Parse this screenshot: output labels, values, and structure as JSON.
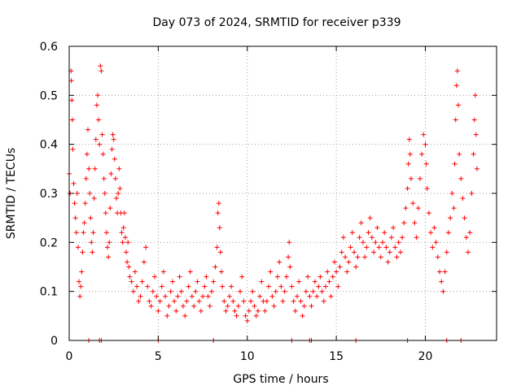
{
  "chart_data": {
    "type": "scatter",
    "title": "Day 073 of 2024, SRMTID for receiver p339",
    "xlabel": "GPS time / hours",
    "ylabel": "SRMTID / TECUs",
    "xlim": [
      0,
      24
    ],
    "ylim": [
      0,
      0.6
    ],
    "xticks": [
      0,
      5,
      10,
      15,
      20
    ],
    "xtick_labels": [
      "0",
      "5",
      "10",
      "15",
      "20"
    ],
    "yticks": [
      0,
      0.1,
      0.2,
      0.3,
      0.4,
      0.5,
      0.6
    ],
    "ytick_labels": [
      "0",
      "0.1",
      "0.2",
      "0.3",
      "0.4",
      "0.5",
      "0.6"
    ],
    "grid": true,
    "marker": "+",
    "color": "#ff0000",
    "series": [
      {
        "name": "SRMTID",
        "points": [
          [
            0.0,
            0.34
          ],
          [
            0.05,
            0.3
          ],
          [
            0.1,
            0.55
          ],
          [
            0.12,
            0.53
          ],
          [
            0.15,
            0.49
          ],
          [
            0.18,
            0.45
          ],
          [
            0.2,
            0.39
          ],
          [
            0.25,
            0.32
          ],
          [
            0.3,
            0.28
          ],
          [
            0.35,
            0.25
          ],
          [
            0.4,
            0.22
          ],
          [
            0.45,
            0.3
          ],
          [
            0.5,
            0.19
          ],
          [
            0.55,
            0.12
          ],
          [
            0.6,
            0.09
          ],
          [
            0.65,
            0.11
          ],
          [
            0.7,
            0.14
          ],
          [
            0.75,
            0.18
          ],
          [
            0.8,
            0.22
          ],
          [
            0.85,
            0.24
          ],
          [
            0.9,
            0.28
          ],
          [
            0.95,
            0.33
          ],
          [
            1.0,
            0.38
          ],
          [
            1.05,
            0.43
          ],
          [
            1.1,
            0.35
          ],
          [
            1.15,
            0.3
          ],
          [
            1.2,
            0.25
          ],
          [
            1.25,
            0.2
          ],
          [
            1.3,
            0.18
          ],
          [
            1.35,
            0.22
          ],
          [
            1.4,
            0.29
          ],
          [
            1.45,
            0.35
          ],
          [
            1.5,
            0.41
          ],
          [
            1.55,
            0.48
          ],
          [
            1.6,
            0.5
          ],
          [
            1.65,
            0.45
          ],
          [
            1.7,
            0.4
          ],
          [
            1.75,
            0.56
          ],
          [
            1.8,
            0.55
          ],
          [
            1.85,
            0.42
          ],
          [
            1.9,
            0.38
          ],
          [
            1.95,
            0.33
          ],
          [
            2.0,
            0.3
          ],
          [
            2.05,
            0.26
          ],
          [
            2.1,
            0.22
          ],
          [
            2.15,
            0.19
          ],
          [
            2.2,
            0.17
          ],
          [
            2.25,
            0.2
          ],
          [
            2.3,
            0.27
          ],
          [
            2.35,
            0.34
          ],
          [
            2.4,
            0.39
          ],
          [
            2.45,
            0.42
          ],
          [
            2.5,
            0.41
          ],
          [
            2.55,
            0.37
          ],
          [
            2.6,
            0.33
          ],
          [
            2.65,
            0.29
          ],
          [
            2.7,
            0.26
          ],
          [
            2.75,
            0.3
          ],
          [
            2.8,
            0.35
          ],
          [
            2.85,
            0.31
          ],
          [
            2.9,
            0.26
          ],
          [
            2.95,
            0.22
          ],
          [
            3.0,
            0.2
          ],
          [
            3.05,
            0.23
          ],
          [
            3.1,
            0.26
          ],
          [
            3.15,
            0.21
          ],
          [
            3.2,
            0.18
          ],
          [
            3.25,
            0.16
          ],
          [
            3.3,
            0.2
          ],
          [
            3.35,
            0.15
          ],
          [
            3.4,
            0.13
          ],
          [
            3.5,
            0.12
          ],
          [
            3.6,
            0.1
          ],
          [
            3.7,
            0.14
          ],
          [
            3.8,
            0.11
          ],
          [
            3.9,
            0.08
          ],
          [
            4.0,
            0.09
          ],
          [
            4.1,
            0.12
          ],
          [
            4.2,
            0.16
          ],
          [
            4.3,
            0.19
          ],
          [
            4.4,
            0.11
          ],
          [
            4.5,
            0.08
          ],
          [
            4.6,
            0.07
          ],
          [
            4.7,
            0.1
          ],
          [
            4.8,
            0.13
          ],
          [
            4.9,
            0.09
          ],
          [
            5.0,
            0.06
          ],
          [
            5.1,
            0.08
          ],
          [
            5.2,
            0.11
          ],
          [
            5.3,
            0.14
          ],
          [
            5.4,
            0.09
          ],
          [
            5.5,
            0.05
          ],
          [
            5.6,
            0.07
          ],
          [
            5.7,
            0.1
          ],
          [
            5.8,
            0.12
          ],
          [
            5.9,
            0.08
          ],
          [
            6.0,
            0.06
          ],
          [
            6.1,
            0.09
          ],
          [
            6.2,
            0.13
          ],
          [
            6.3,
            0.1
          ],
          [
            6.4,
            0.07
          ],
          [
            6.5,
            0.05
          ],
          [
            6.6,
            0.08
          ],
          [
            6.7,
            0.11
          ],
          [
            6.8,
            0.14
          ],
          [
            6.9,
            0.09
          ],
          [
            7.0,
            0.07
          ],
          [
            7.1,
            0.1
          ],
          [
            7.2,
            0.12
          ],
          [
            7.3,
            0.08
          ],
          [
            7.4,
            0.06
          ],
          [
            7.5,
            0.09
          ],
          [
            7.6,
            0.11
          ],
          [
            7.7,
            0.13
          ],
          [
            7.8,
            0.09
          ],
          [
            7.9,
            0.07
          ],
          [
            8.0,
            0.1
          ],
          [
            8.1,
            0.12
          ],
          [
            8.2,
            0.15
          ],
          [
            8.3,
            0.19
          ],
          [
            8.35,
            0.26
          ],
          [
            8.4,
            0.28
          ],
          [
            8.45,
            0.23
          ],
          [
            8.5,
            0.18
          ],
          [
            8.55,
            0.14
          ],
          [
            8.6,
            0.11
          ],
          [
            8.7,
            0.08
          ],
          [
            8.8,
            0.06
          ],
          [
            8.9,
            0.07
          ],
          [
            9.0,
            0.09
          ],
          [
            9.1,
            0.11
          ],
          [
            9.2,
            0.08
          ],
          [
            9.3,
            0.06
          ],
          [
            9.4,
            0.05
          ],
          [
            9.5,
            0.07
          ],
          [
            9.6,
            0.1
          ],
          [
            9.7,
            0.13
          ],
          [
            9.8,
            0.08
          ],
          [
            9.9,
            0.05
          ],
          [
            10.0,
            0.04
          ],
          [
            10.1,
            0.06
          ],
          [
            10.2,
            0.08
          ],
          [
            10.3,
            0.1
          ],
          [
            10.4,
            0.07
          ],
          [
            10.5,
            0.05
          ],
          [
            10.6,
            0.06
          ],
          [
            10.7,
            0.09
          ],
          [
            10.8,
            0.12
          ],
          [
            10.9,
            0.08
          ],
          [
            11.0,
            0.06
          ],
          [
            11.1,
            0.08
          ],
          [
            11.2,
            0.11
          ],
          [
            11.3,
            0.14
          ],
          [
            11.4,
            0.09
          ],
          [
            11.5,
            0.07
          ],
          [
            11.6,
            0.1
          ],
          [
            11.7,
            0.13
          ],
          [
            11.8,
            0.16
          ],
          [
            11.9,
            0.11
          ],
          [
            12.0,
            0.08
          ],
          [
            12.1,
            0.1
          ],
          [
            12.2,
            0.13
          ],
          [
            12.3,
            0.17
          ],
          [
            12.35,
            0.2
          ],
          [
            12.4,
            0.15
          ],
          [
            12.5,
            0.11
          ],
          [
            12.6,
            0.08
          ],
          [
            12.7,
            0.06
          ],
          [
            12.8,
            0.09
          ],
          [
            12.9,
            0.12
          ],
          [
            13.0,
            0.08
          ],
          [
            13.1,
            0.05
          ],
          [
            13.2,
            0.07
          ],
          [
            13.3,
            0.1
          ],
          [
            13.4,
            0.13
          ],
          [
            13.5,
            0.09
          ],
          [
            13.6,
            0.07
          ],
          [
            13.7,
            0.1
          ],
          [
            13.8,
            0.12
          ],
          [
            13.9,
            0.09
          ],
          [
            14.0,
            0.11
          ],
          [
            14.1,
            0.13
          ],
          [
            14.2,
            0.1
          ],
          [
            14.3,
            0.08
          ],
          [
            14.4,
            0.11
          ],
          [
            14.5,
            0.14
          ],
          [
            14.6,
            0.12
          ],
          [
            14.7,
            0.09
          ],
          [
            14.8,
            0.13
          ],
          [
            14.9,
            0.16
          ],
          [
            15.0,
            0.14
          ],
          [
            15.1,
            0.11
          ],
          [
            15.2,
            0.15
          ],
          [
            15.3,
            0.18
          ],
          [
            15.4,
            0.21
          ],
          [
            15.5,
            0.17
          ],
          [
            15.6,
            0.14
          ],
          [
            15.7,
            0.16
          ],
          [
            15.8,
            0.19
          ],
          [
            15.9,
            0.22
          ],
          [
            16.0,
            0.18
          ],
          [
            16.1,
            0.15
          ],
          [
            16.2,
            0.17
          ],
          [
            16.3,
            0.21
          ],
          [
            16.4,
            0.24
          ],
          [
            16.5,
            0.2
          ],
          [
            16.6,
            0.17
          ],
          [
            16.7,
            0.19
          ],
          [
            16.8,
            0.22
          ],
          [
            16.9,
            0.25
          ],
          [
            17.0,
            0.21
          ],
          [
            17.1,
            0.18
          ],
          [
            17.2,
            0.2
          ],
          [
            17.3,
            0.23
          ],
          [
            17.4,
            0.19
          ],
          [
            17.5,
            0.17
          ],
          [
            17.6,
            0.2
          ],
          [
            17.7,
            0.22
          ],
          [
            17.8,
            0.19
          ],
          [
            17.9,
            0.16
          ],
          [
            18.0,
            0.18
          ],
          [
            18.1,
            0.21
          ],
          [
            18.2,
            0.23
          ],
          [
            18.3,
            0.19
          ],
          [
            18.4,
            0.17
          ],
          [
            18.5,
            0.2
          ],
          [
            18.6,
            0.18
          ],
          [
            18.7,
            0.21
          ],
          [
            18.8,
            0.24
          ],
          [
            18.9,
            0.27
          ],
          [
            19.0,
            0.31
          ],
          [
            19.05,
            0.36
          ],
          [
            19.1,
            0.41
          ],
          [
            19.15,
            0.38
          ],
          [
            19.2,
            0.33
          ],
          [
            19.3,
            0.28
          ],
          [
            19.4,
            0.24
          ],
          [
            19.5,
            0.21
          ],
          [
            19.6,
            0.27
          ],
          [
            19.7,
            0.33
          ],
          [
            19.8,
            0.38
          ],
          [
            19.9,
            0.42
          ],
          [
            20.0,
            0.4
          ],
          [
            20.05,
            0.36
          ],
          [
            20.1,
            0.31
          ],
          [
            20.2,
            0.26
          ],
          [
            20.3,
            0.22
          ],
          [
            20.4,
            0.19
          ],
          [
            20.5,
            0.23
          ],
          [
            20.6,
            0.2
          ],
          [
            20.7,
            0.17
          ],
          [
            20.8,
            0.14
          ],
          [
            20.9,
            0.12
          ],
          [
            21.0,
            0.1
          ],
          [
            21.1,
            0.14
          ],
          [
            21.2,
            0.18
          ],
          [
            21.3,
            0.22
          ],
          [
            21.4,
            0.25
          ],
          [
            21.5,
            0.3
          ],
          [
            21.6,
            0.27
          ],
          [
            21.65,
            0.36
          ],
          [
            21.7,
            0.45
          ],
          [
            21.75,
            0.52
          ],
          [
            21.8,
            0.55
          ],
          [
            21.85,
            0.48
          ],
          [
            21.9,
            0.38
          ],
          [
            22.0,
            0.33
          ],
          [
            22.1,
            0.29
          ],
          [
            22.2,
            0.25
          ],
          [
            22.3,
            0.21
          ],
          [
            22.4,
            0.18
          ],
          [
            22.5,
            0.22
          ],
          [
            22.6,
            0.3
          ],
          [
            22.7,
            0.38
          ],
          [
            22.75,
            0.45
          ],
          [
            22.8,
            0.5
          ],
          [
            22.85,
            0.42
          ],
          [
            22.9,
            0.35
          ]
        ]
      }
    ],
    "zero_points_x": [
      1.1,
      1.7,
      1.8,
      5.0,
      8.1,
      12.5,
      13.5,
      13.6,
      16.1,
      19.0,
      21.2,
      22.0
    ]
  }
}
